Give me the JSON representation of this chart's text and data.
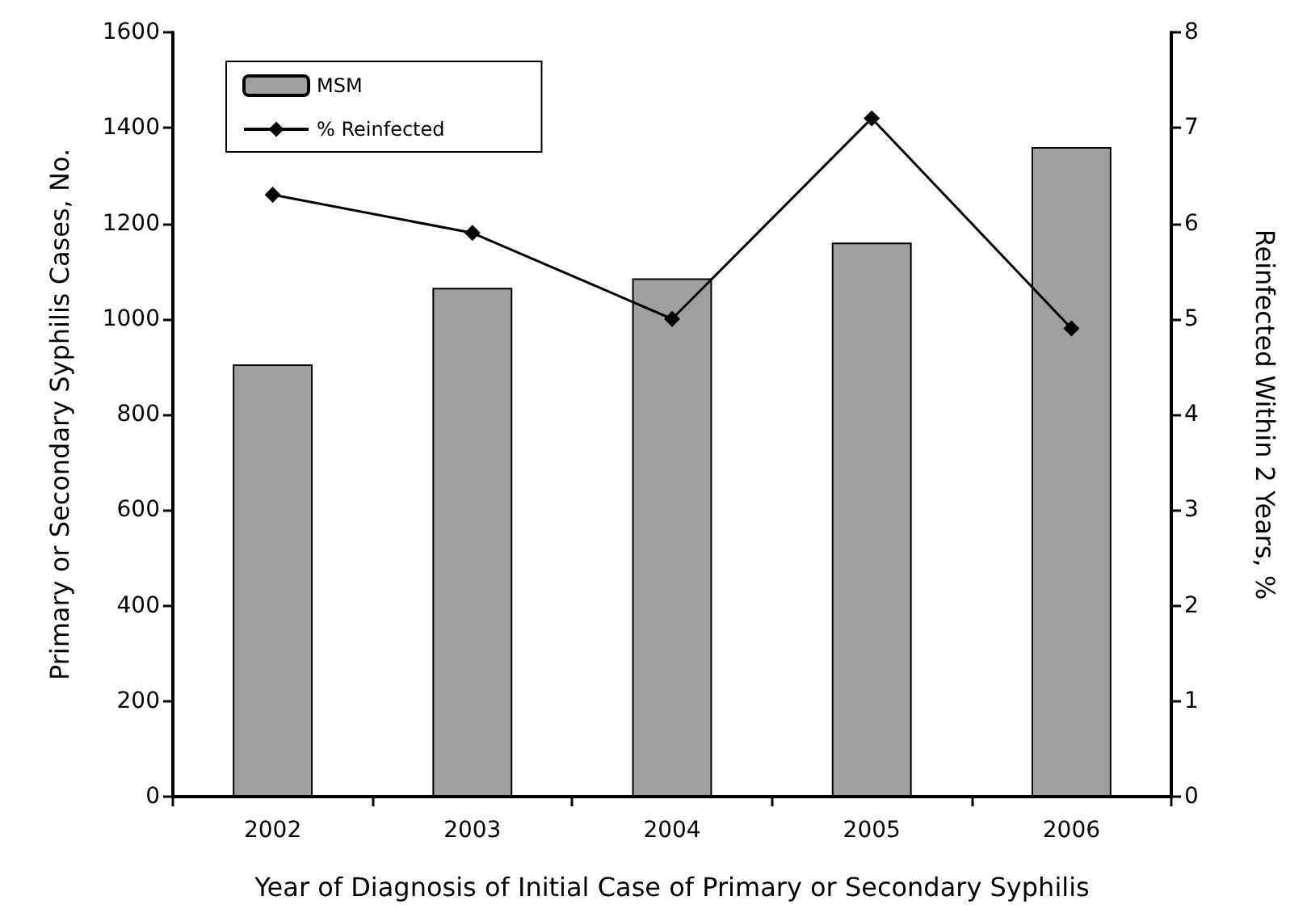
{
  "chart_data": {
    "type": "bar",
    "xlabel": "Year of Diagnosis of Initial Case of Primary or Secondary Syphilis",
    "ylabel": "Primary or Secondary Syphilis Cases, No.",
    "y2label": "Reinfected Within 2 Years, %",
    "categories": [
      "2002",
      "2003",
      "2004",
      "2005",
      "2006"
    ],
    "series": [
      {
        "name": "MSM",
        "color": "#a0a0a0",
        "values": [
          905,
          1065,
          1085,
          1160,
          1360
        ]
      },
      {
        "name": "% Reinfected",
        "type": "line",
        "axis": "y2",
        "color": "#000000",
        "marker": "diamond",
        "values": [
          6.3,
          5.9,
          5.0,
          7.1,
          4.9
        ]
      }
    ],
    "ylim": [
      0,
      1600
    ],
    "yticks": [
      0,
      200,
      400,
      600,
      800,
      1000,
      1200,
      1400,
      1600
    ],
    "y2lim": [
      0,
      8
    ],
    "y2ticks": [
      0,
      1,
      2,
      3,
      4,
      5,
      6,
      7,
      8
    ],
    "grid": false,
    "legend": "top left"
  }
}
